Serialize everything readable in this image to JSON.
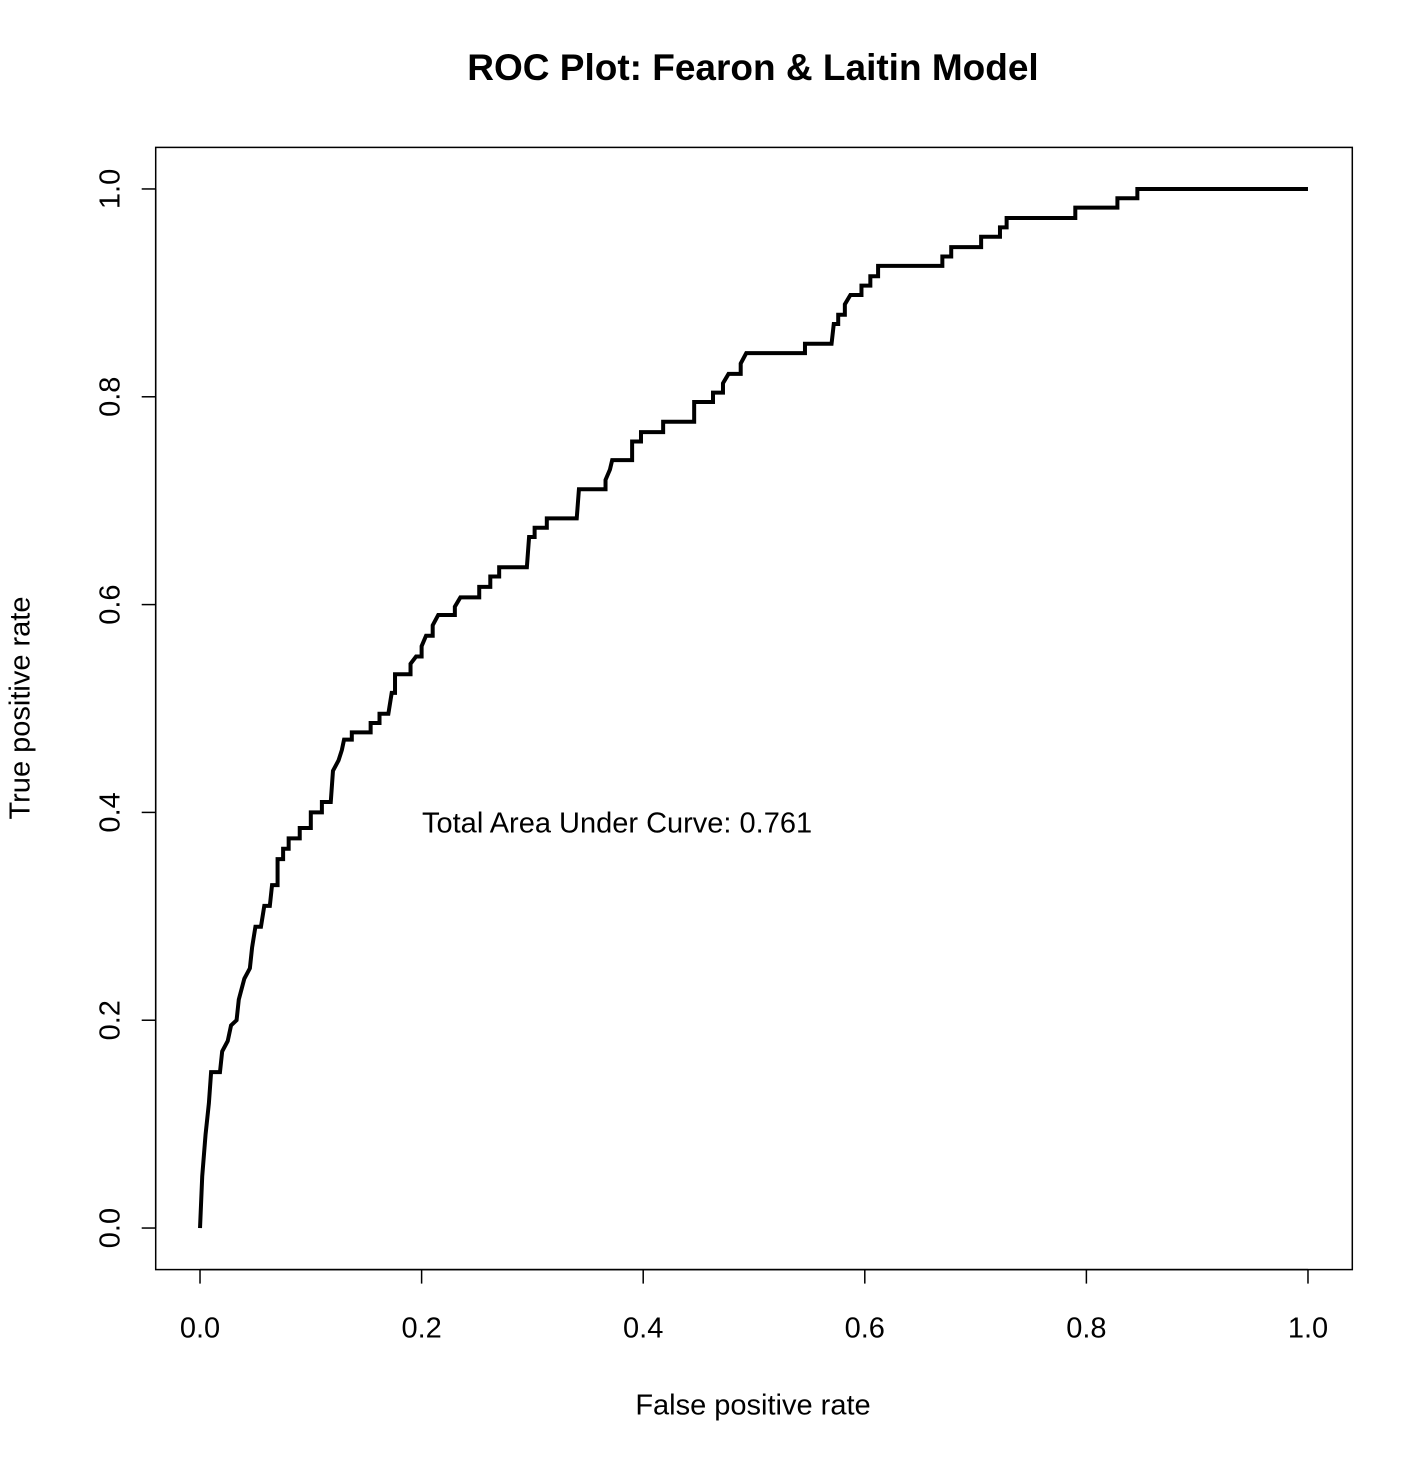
{
  "chart_data": {
    "type": "line",
    "title": "ROC Plot: Fearon & Laitin Model",
    "xlabel": "False positive rate",
    "ylabel": "True positive rate",
    "annotation": "Total Area Under Curve: 0.761",
    "xlim": [
      -0.04,
      1.04
    ],
    "ylim": [
      -0.04,
      1.04
    ],
    "xticks": [
      {
        "value": 0,
        "label": "0.0"
      },
      0.2,
      0.4,
      0.6,
      0.8,
      {
        "value": 1,
        "label": "1.0"
      }
    ],
    "yticks": [
      {
        "value": 0,
        "label": "0.0"
      },
      0.2,
      0.4,
      0.6,
      0.8,
      {
        "value": 1,
        "label": "1.0"
      }
    ],
    "x": [
      0,
      0.002,
      0.005,
      0.008,
      0.01,
      0.018,
      0.02,
      0.025,
      0.028,
      0.033,
      0.035,
      0.04,
      0.045,
      0.047,
      0.05,
      0.055,
      0.058,
      0.063,
      0.065,
      0.07,
      0.07,
      0.075,
      0.075,
      0.08,
      0.08,
      0.09,
      0.09,
      0.1,
      0.1,
      0.11,
      0.11,
      0.118,
      0.12,
      0.125,
      0.128,
      0.13,
      0.137,
      0.137,
      0.154,
      0.154,
      0.162,
      0.162,
      0.17,
      0.173,
      0.176,
      0.176,
      0.19,
      0.19,
      0.195,
      0.2,
      0.2,
      0.204,
      0.21,
      0.21,
      0.215,
      0.23,
      0.23,
      0.235,
      0.252,
      0.252,
      0.262,
      0.262,
      0.27,
      0.27,
      0.295,
      0.297,
      0.302,
      0.302,
      0.313,
      0.313,
      0.34,
      0.342,
      0.366,
      0.366,
      0.37,
      0.372,
      0.39,
      0.39,
      0.398,
      0.398,
      0.418,
      0.418,
      0.446,
      0.446,
      0.463,
      0.463,
      0.472,
      0.472,
      0.477,
      0.488,
      0.488,
      0.493,
      0.546,
      0.546,
      0.57,
      0.572,
      0.576,
      0.576,
      0.582,
      0.582,
      0.587,
      0.597,
      0.597,
      0.605,
      0.605,
      0.612,
      0.612,
      0.67,
      0.67,
      0.678,
      0.678,
      0.705,
      0.705,
      0.722,
      0.722,
      0.728,
      0.728,
      0.79,
      0.79,
      0.828,
      0.828,
      0.846,
      0.846,
      1
    ],
    "series": [
      {
        "name": "ROC",
        "color": "#000000",
        "values": [
          0,
          0.05,
          0.09,
          0.12,
          0.15,
          0.15,
          0.17,
          0.18,
          0.195,
          0.2,
          0.22,
          0.24,
          0.25,
          0.27,
          0.29,
          0.29,
          0.31,
          0.31,
          0.33,
          0.33,
          0.355,
          0.355,
          0.365,
          0.365,
          0.375,
          0.375,
          0.385,
          0.385,
          0.4,
          0.4,
          0.41,
          0.41,
          0.44,
          0.45,
          0.46,
          0.47,
          0.47,
          0.477,
          0.477,
          0.486,
          0.486,
          0.495,
          0.495,
          0.515,
          0.515,
          0.533,
          0.533,
          0.543,
          0.55,
          0.55,
          0.56,
          0.57,
          0.57,
          0.58,
          0.59,
          0.59,
          0.598,
          0.607,
          0.607,
          0.617,
          0.617,
          0.627,
          0.627,
          0.636,
          0.636,
          0.665,
          0.665,
          0.674,
          0.674,
          0.683,
          0.683,
          0.711,
          0.711,
          0.72,
          0.73,
          0.739,
          0.739,
          0.757,
          0.757,
          0.766,
          0.766,
          0.776,
          0.776,
          0.795,
          0.795,
          0.804,
          0.804,
          0.813,
          0.822,
          0.822,
          0.832,
          0.842,
          0.842,
          0.851,
          0.851,
          0.87,
          0.87,
          0.879,
          0.879,
          0.889,
          0.898,
          0.898,
          0.907,
          0.907,
          0.916,
          0.916,
          0.926,
          0.926,
          0.935,
          0.935,
          0.944,
          0.944,
          0.954,
          0.954,
          0.963,
          0.963,
          0.972,
          0.972,
          0.982,
          0.982,
          0.991,
          0.991,
          1,
          1
        ]
      }
    ]
  }
}
